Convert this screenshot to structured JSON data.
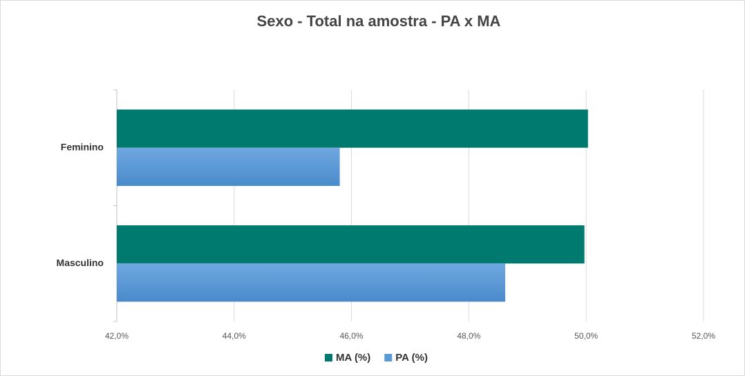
{
  "chart_data": {
    "type": "hbar",
    "title": "Sexo - Total na amostra - PA x MA",
    "categories": [
      "Feminino",
      "Masculino"
    ],
    "series": [
      {
        "name": "MA (%)",
        "color": "#007a6e",
        "values": [
          50.03,
          49.97
        ]
      },
      {
        "name": "PA (%)",
        "color": "#5b9bd5",
        "values": [
          45.8,
          48.62
        ]
      }
    ],
    "xlim": [
      42,
      52
    ],
    "xticks": [
      {
        "value": 42,
        "label": "42,0%"
      },
      {
        "value": 44,
        "label": "44,0%"
      },
      {
        "value": 46,
        "label": "46,0%"
      },
      {
        "value": 48,
        "label": "48,0%"
      },
      {
        "value": 50,
        "label": "50,0%"
      },
      {
        "value": 52,
        "label": "52,0%"
      }
    ],
    "grid": true,
    "legend": "bottom"
  }
}
